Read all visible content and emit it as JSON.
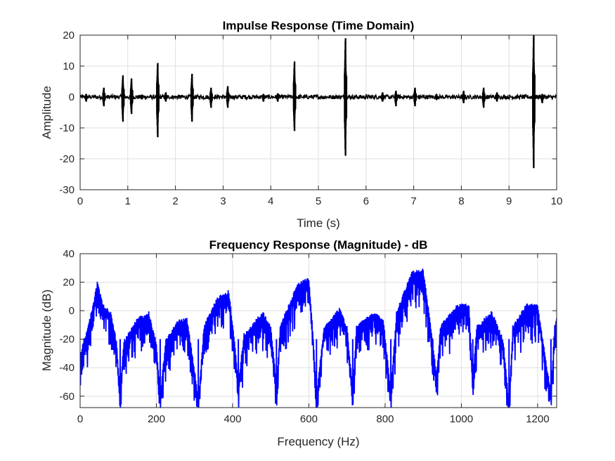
{
  "chart_data": [
    {
      "type": "line",
      "title": "Impulse Response (Time Domain)",
      "xlabel": "Time (s)",
      "ylabel": "Amplitude",
      "xlim": [
        0,
        10
      ],
      "ylim": [
        -30,
        20
      ],
      "xticks": [
        0,
        1,
        2,
        3,
        4,
        5,
        6,
        7,
        8,
        9,
        10
      ],
      "yticks": [
        -30,
        -20,
        -10,
        0,
        10,
        20
      ],
      "grid": true,
      "line_color": "#000000",
      "noise_floor": 0.7,
      "series": [
        {
          "description_points": "impulses: time (s), positive peak, negative peak",
          "impulses": [
            {
              "t": 0.13,
              "pos": 1.0,
              "neg": -1.5
            },
            {
              "t": 0.5,
              "pos": 3.0,
              "neg": -3.0
            },
            {
              "t": 0.9,
              "pos": 7.0,
              "neg": -8.0
            },
            {
              "t": 1.08,
              "pos": 6.0,
              "neg": -5.5
            },
            {
              "t": 1.3,
              "pos": 0.8,
              "neg": -0.8
            },
            {
              "t": 1.63,
              "pos": 11.0,
              "neg": -13.0
            },
            {
              "t": 1.8,
              "pos": 1.5,
              "neg": -1.5
            },
            {
              "t": 2.35,
              "pos": 7.5,
              "neg": -8.0
            },
            {
              "t": 2.75,
              "pos": 3.0,
              "neg": -3.5
            },
            {
              "t": 3.1,
              "pos": 3.5,
              "neg": -3.5
            },
            {
              "t": 3.85,
              "pos": 1.0,
              "neg": -1.5
            },
            {
              "t": 4.15,
              "pos": 1.2,
              "neg": -1.5
            },
            {
              "t": 4.5,
              "pos": 11.5,
              "neg": -11.0
            },
            {
              "t": 5.57,
              "pos": 19.0,
              "neg": -19.0
            },
            {
              "t": 6.35,
              "pos": 1.5,
              "neg": -1.5
            },
            {
              "t": 6.63,
              "pos": 2.0,
              "neg": -3.0
            },
            {
              "t": 7.03,
              "pos": 3.0,
              "neg": -3.0
            },
            {
              "t": 7.48,
              "pos": 1.0,
              "neg": -1.0
            },
            {
              "t": 8.05,
              "pos": 2.0,
              "neg": -2.0
            },
            {
              "t": 8.47,
              "pos": 3.0,
              "neg": -3.5
            },
            {
              "t": 8.75,
              "pos": 1.5,
              "neg": -1.5
            },
            {
              "t": 9.52,
              "pos": 20.0,
              "neg": -23.0
            },
            {
              "t": 9.7,
              "pos": 1.0,
              "neg": -2.0
            }
          ]
        }
      ]
    },
    {
      "type": "line",
      "title": "Frequency Response (Magnitude) - dB",
      "xlabel": "Frequency (Hz)",
      "ylabel": "Magnitude (dB)",
      "xlim": [
        0,
        1250
      ],
      "ylim": [
        -68,
        40
      ],
      "xticks": [
        0,
        200,
        400,
        600,
        800,
        1000,
        1200
      ],
      "yticks": [
        -60,
        -40,
        -20,
        0,
        20,
        40
      ],
      "grid": true,
      "line_color": "#0000ff",
      "series": [
        {
          "description_points": "lobe envelope: frequency (Hz), upper level (dB)",
          "envelope": [
            [
              0,
              -30
            ],
            [
              10,
              -20
            ],
            [
              30,
              0
            ],
            [
              45,
              21
            ],
            [
              60,
              5
            ],
            [
              80,
              0
            ],
            [
              95,
              -20
            ],
            [
              105,
              -55
            ],
            [
              115,
              -20
            ],
            [
              150,
              -5
            ],
            [
              180,
              0
            ],
            [
              200,
              -22
            ],
            [
              210,
              -58
            ],
            [
              225,
              -20
            ],
            [
              260,
              -5
            ],
            [
              280,
              -5
            ],
            [
              300,
              -40
            ],
            [
              310,
              -62
            ],
            [
              325,
              -10
            ],
            [
              360,
              10
            ],
            [
              390,
              15
            ],
            [
              405,
              -20
            ],
            [
              415,
              -50
            ],
            [
              430,
              -15
            ],
            [
              480,
              0
            ],
            [
              500,
              -10
            ],
            [
              515,
              -50
            ],
            [
              525,
              -10
            ],
            [
              570,
              20
            ],
            [
              600,
              24
            ],
            [
              612,
              -20
            ],
            [
              620,
              -58
            ],
            [
              640,
              -10
            ],
            [
              680,
              2
            ],
            [
              700,
              -10
            ],
            [
              715,
              -55
            ],
            [
              725,
              -10
            ],
            [
              770,
              0
            ],
            [
              795,
              -5
            ],
            [
              815,
              -55
            ],
            [
              830,
              0
            ],
            [
              870,
              28
            ],
            [
              900,
              30
            ],
            [
              920,
              -10
            ],
            [
              935,
              -45
            ],
            [
              945,
              -10
            ],
            [
              990,
              5
            ],
            [
              1020,
              5
            ],
            [
              1030,
              -50
            ],
            [
              1040,
              -10
            ],
            [
              1080,
              0
            ],
            [
              1110,
              -20
            ],
            [
              1125,
              -65
            ],
            [
              1135,
              -10
            ],
            [
              1170,
              5
            ],
            [
              1200,
              5
            ],
            [
              1225,
              -40
            ],
            [
              1235,
              -55
            ],
            [
              1245,
              -10
            ],
            [
              1250,
              -5
            ]
          ],
          "notches": [
            [
              105,
              -62
            ],
            [
              210,
              -58
            ],
            [
              310,
              -66
            ],
            [
              415,
              -50
            ],
            [
              515,
              -50
            ],
            [
              620,
              -58
            ],
            [
              715,
              -60
            ],
            [
              815,
              -55
            ],
            [
              925,
              -45
            ],
            [
              1030,
              -50
            ],
            [
              1125,
              -65
            ],
            [
              1235,
              -55
            ]
          ]
        }
      ]
    }
  ]
}
